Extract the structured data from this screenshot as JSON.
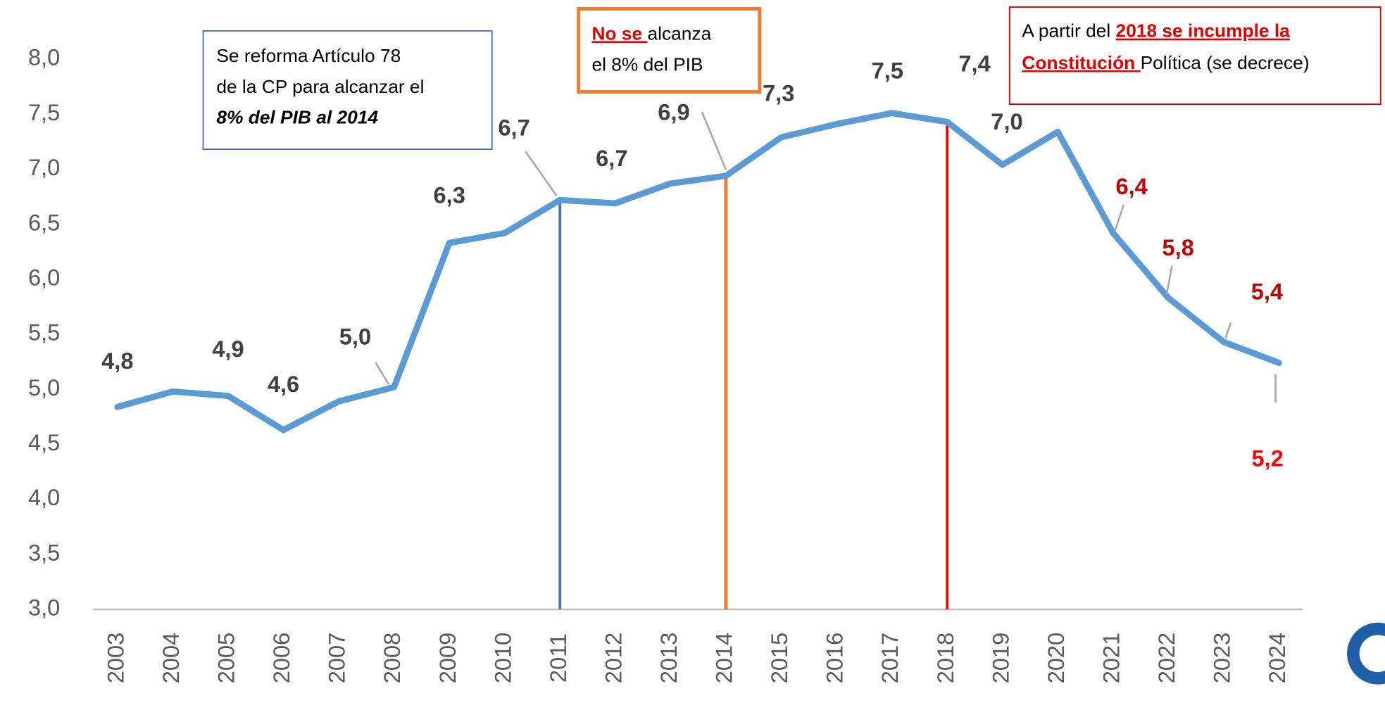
{
  "chart_data": {
    "type": "line",
    "categories": [
      "2003",
      "2004",
      "2005",
      "2006",
      "2007",
      "2008",
      "2009",
      "2010",
      "2011",
      "2012",
      "2013",
      "2014",
      "2015",
      "2016",
      "2017",
      "2018",
      "2019",
      "2020",
      "2021",
      "2022",
      "2023",
      "2024"
    ],
    "series": [
      {
        "color": "#5b9bd5",
        "values": [
          4.84,
          4.98,
          4.94,
          4.63,
          4.89,
          5.02,
          6.33,
          6.42,
          6.72,
          6.69,
          6.87,
          6.94,
          7.29,
          7.41,
          7.51,
          7.43,
          7.04,
          7.34,
          6.42,
          5.83,
          5.43,
          5.24
        ],
        "value_labels": [
          "4,8",
          null,
          "4,9",
          "4,6",
          null,
          "5,0",
          "6,3",
          null,
          "6,7",
          "6,7",
          null,
          "6,9",
          "7,3",
          null,
          "7,5",
          "7,4",
          "7,0",
          null,
          "6,4",
          "5,8",
          "5,4",
          "5,2"
        ],
        "value_label_colors": [
          "#404040",
          null,
          "#404040",
          "#404040",
          null,
          "#404040",
          "#404040",
          null,
          "#404040",
          "#404040",
          null,
          "#404040",
          "#404040",
          null,
          "#404040",
          "#404040",
          "#404040",
          null,
          "#c00000",
          "#c00000",
          "#c00000",
          "#ff0000"
        ]
      }
    ],
    "ylim": [
      3,
      8
    ],
    "yticks": [
      {
        "value": 3,
        "label": "3,0"
      },
      {
        "value": 3.5,
        "label": "3,5"
      },
      {
        "value": 4,
        "label": "4,0"
      },
      {
        "value": 4.5,
        "label": "4,5"
      },
      {
        "value": 5,
        "label": "5,0"
      },
      {
        "value": 5.5,
        "label": "5,5"
      },
      {
        "value": 6,
        "label": "6,0"
      },
      {
        "value": 6.5,
        "label": "6,5"
      },
      {
        "value": 7,
        "label": "7,0"
      },
      {
        "value": 7.5,
        "label": "7,5"
      },
      {
        "value": 8,
        "label": "8,0"
      }
    ],
    "grid": false,
    "markers": [
      {
        "category": "2011",
        "color": "#4472c4"
      },
      {
        "category": "2014",
        "color": "#ed7d31"
      },
      {
        "category": "2018",
        "color": "#ff0000"
      }
    ],
    "annotations": [
      {
        "parts": [
          "Se reforma Artículo 78",
          "de la CP para alcanzar el",
          "8% del PIB al 2014"
        ]
      },
      {
        "parts": [
          "No se ",
          "alcanza",
          "el 8% del PIB"
        ]
      },
      {
        "parts": [
          "A partir del ",
          "2018 se incumple la",
          "Constitución ",
          "Política (se decrece)"
        ]
      }
    ]
  }
}
